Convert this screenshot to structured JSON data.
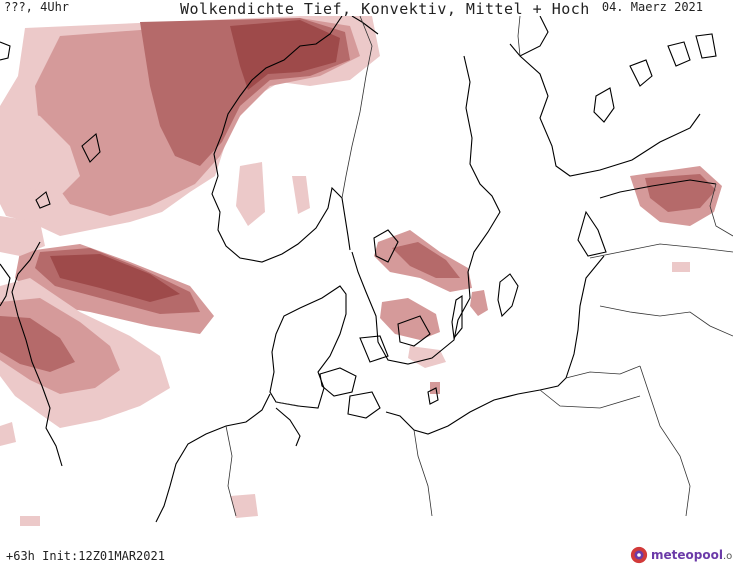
{
  "header": {
    "left_label": "???, 4Uhr",
    "title": "Wolkendichte  Tief, Konvektiv, Mittel + Hoch",
    "date": "04. Maerz 2021"
  },
  "footer": {
    "forecast_info": "+63h Init:12Z01MAR2021"
  },
  "logo": {
    "name": "meteopool",
    "domain": ".org"
  },
  "colors": {
    "cloud_light": "#ecc9c9",
    "cloud_mid": "#d59a9a",
    "cloud_dark": "#b56a6a",
    "cloud_darkest": "#9e4a4a",
    "coast": "#000000",
    "border": "#333333",
    "brand": "#6b3aa8"
  }
}
